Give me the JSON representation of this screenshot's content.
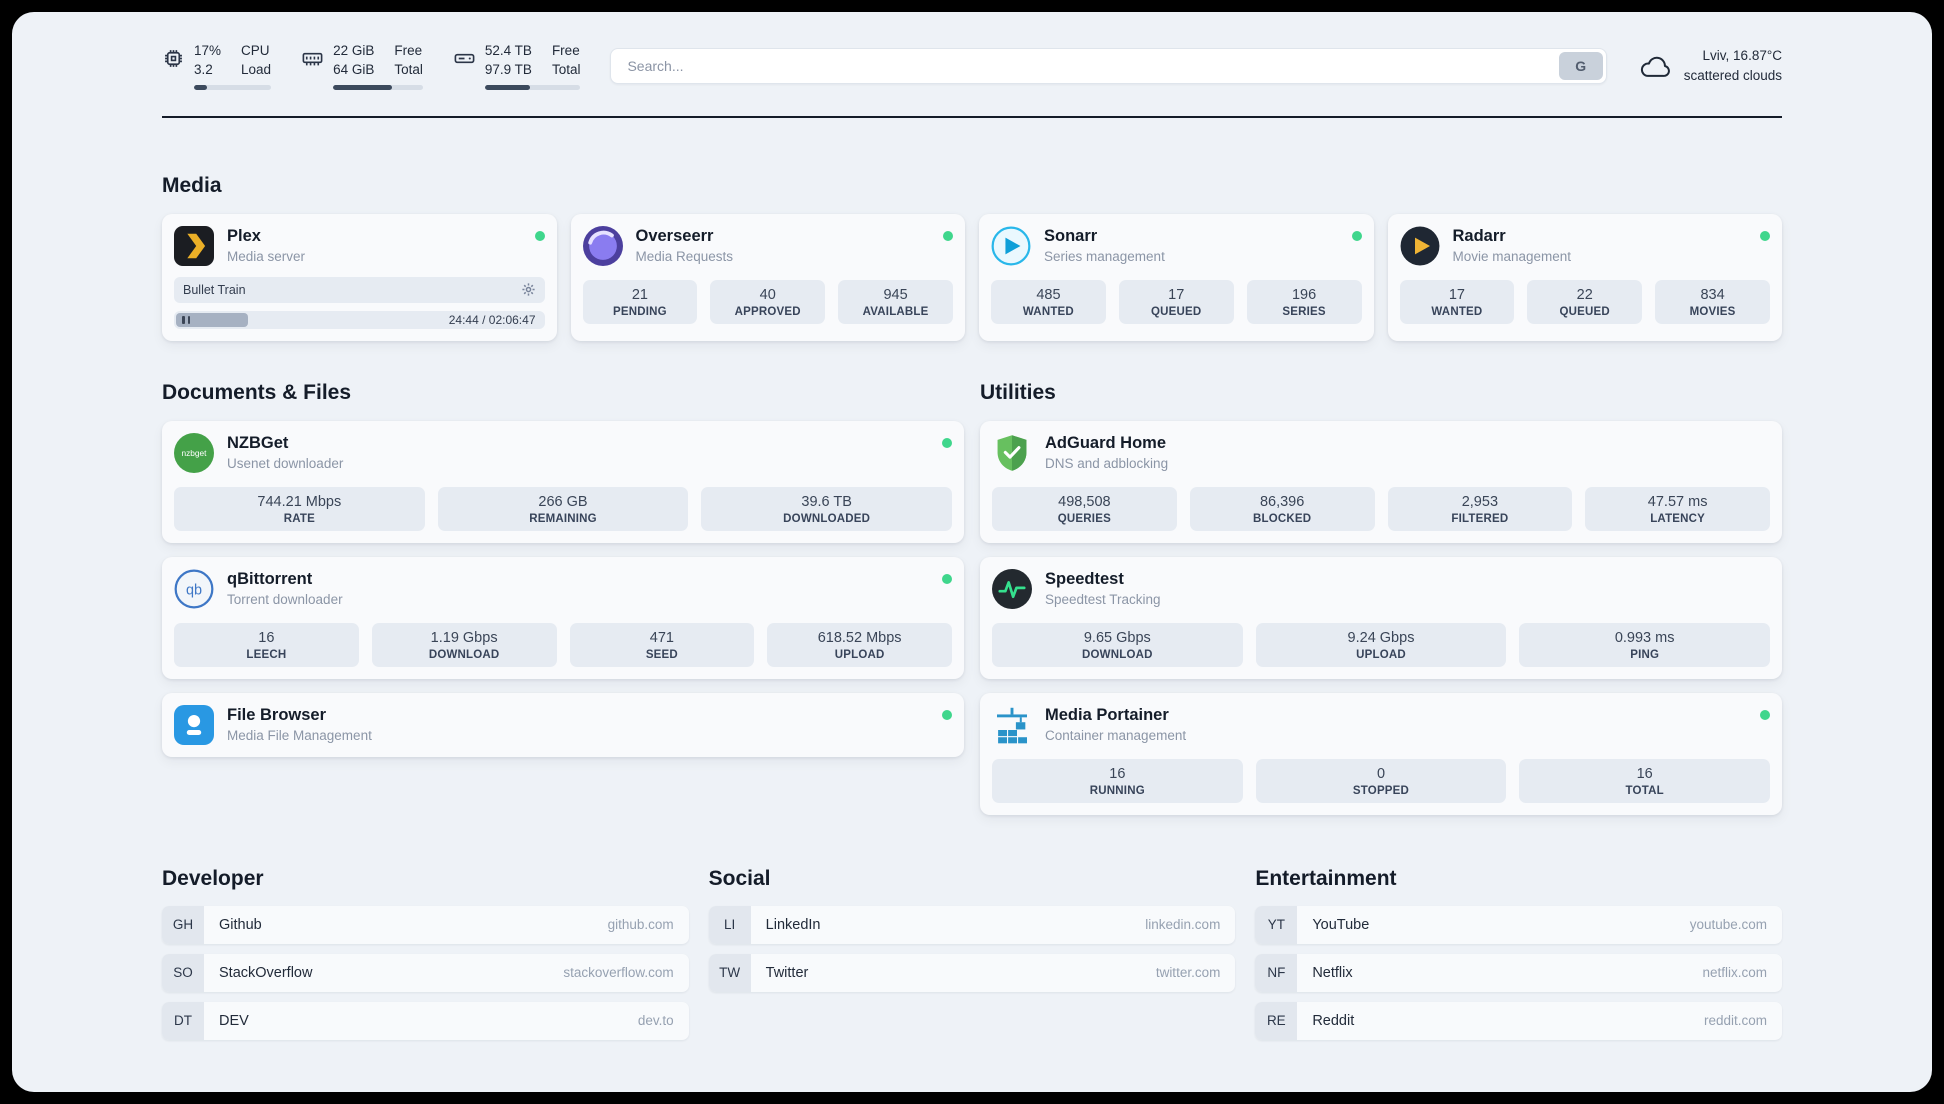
{
  "colors": {
    "status_online": "#3fd68c",
    "resource_bar_fill": "#3c4a5d",
    "page_background": "#eef2f7"
  },
  "topbar": {
    "cpu": {
      "percent": "17%",
      "load": "3.2",
      "label_top": "CPU",
      "label_bottom": "Load",
      "bar_percent": 17
    },
    "ram": {
      "free": "22 GiB",
      "total": "64 GiB",
      "label_top": "Free",
      "label_bottom": "Total",
      "bar_percent": 66
    },
    "disk": {
      "free": "52.4 TB",
      "total": "97.9 TB",
      "label_top": "Free",
      "label_bottom": "Total",
      "bar_percent": 47
    },
    "search": {
      "placeholder": "Search...",
      "button_label": "G"
    },
    "weather": {
      "location": "Lviv, 16.87°C",
      "condition": "scattered clouds"
    }
  },
  "sections": {
    "media": {
      "title": "Media",
      "cards": [
        {
          "name": "Plex",
          "desc": "Media server",
          "online": true,
          "player": {
            "title": "Bullet Train",
            "time": "24:44 / 02:06:47",
            "progress_percent": 19.5
          }
        },
        {
          "name": "Overseerr",
          "desc": "Media Requests",
          "online": true,
          "stats": [
            {
              "value": "21",
              "label": "PENDING"
            },
            {
              "value": "40",
              "label": "APPROVED"
            },
            {
              "value": "945",
              "label": "AVAILABLE"
            }
          ]
        },
        {
          "name": "Sonarr",
          "desc": "Series management",
          "online": true,
          "stats": [
            {
              "value": "485",
              "label": "WANTED"
            },
            {
              "value": "17",
              "label": "QUEUED"
            },
            {
              "value": "196",
              "label": "SERIES"
            }
          ]
        },
        {
          "name": "Radarr",
          "desc": "Movie management",
          "online": true,
          "stats": [
            {
              "value": "17",
              "label": "WANTED"
            },
            {
              "value": "22",
              "label": "QUEUED"
            },
            {
              "value": "834",
              "label": "MOVIES"
            }
          ]
        }
      ]
    },
    "documents": {
      "title": "Documents & Files",
      "cards": [
        {
          "name": "NZBGet",
          "desc": "Usenet downloader",
          "online": true,
          "stats": [
            {
              "value": "744.21 Mbps",
              "label": "RATE"
            },
            {
              "value": "266 GB",
              "label": "REMAINING"
            },
            {
              "value": "39.6 TB",
              "label": "DOWNLOADED"
            }
          ]
        },
        {
          "name": "qBittorrent",
          "desc": "Torrent downloader",
          "online": true,
          "stats": [
            {
              "value": "16",
              "label": "LEECH"
            },
            {
              "value": "1.19 Gbps",
              "label": "DOWNLOAD"
            },
            {
              "value": "471",
              "label": "SEED"
            },
            {
              "value": "618.52 Mbps",
              "label": "UPLOAD"
            }
          ]
        },
        {
          "name": "File Browser",
          "desc": "Media File Management",
          "online": true
        }
      ]
    },
    "utilities": {
      "title": "Utilities",
      "cards": [
        {
          "name": "AdGuard Home",
          "desc": "DNS and adblocking",
          "stats": [
            {
              "value": "498,508",
              "label": "QUERIES"
            },
            {
              "value": "86,396",
              "label": "BLOCKED"
            },
            {
              "value": "2,953",
              "label": "FILTERED"
            },
            {
              "value": "47.57 ms",
              "label": "LATENCY"
            }
          ]
        },
        {
          "name": "Speedtest",
          "desc": "Speedtest Tracking",
          "stats": [
            {
              "value": "9.65 Gbps",
              "label": "DOWNLOAD"
            },
            {
              "value": "9.24 Gbps",
              "label": "UPLOAD"
            },
            {
              "value": "0.993 ms",
              "label": "PING"
            }
          ]
        },
        {
          "name": "Media Portainer",
          "desc": "Container management",
          "online": true,
          "stats": [
            {
              "value": "16",
              "label": "RUNNING"
            },
            {
              "value": "0",
              "label": "STOPPED"
            },
            {
              "value": "16",
              "label": "TOTAL"
            }
          ]
        }
      ]
    },
    "bookmarks": [
      {
        "title": "Developer",
        "items": [
          {
            "abbr": "GH",
            "name": "Github",
            "domain": "github.com"
          },
          {
            "abbr": "SO",
            "name": "StackOverflow",
            "domain": "stackoverflow.com"
          },
          {
            "abbr": "DT",
            "name": "DEV",
            "domain": "dev.to"
          }
        ]
      },
      {
        "title": "Social",
        "items": [
          {
            "abbr": "LI",
            "name": "LinkedIn",
            "domain": "linkedin.com"
          },
          {
            "abbr": "TW",
            "name": "Twitter",
            "domain": "twitter.com"
          }
        ]
      },
      {
        "title": "Entertainment",
        "items": [
          {
            "abbr": "YT",
            "name": "YouTube",
            "domain": "youtube.com"
          },
          {
            "abbr": "NF",
            "name": "Netflix",
            "domain": "netflix.com"
          },
          {
            "abbr": "RE",
            "name": "Reddit",
            "domain": "reddit.com"
          }
        ]
      }
    ]
  }
}
